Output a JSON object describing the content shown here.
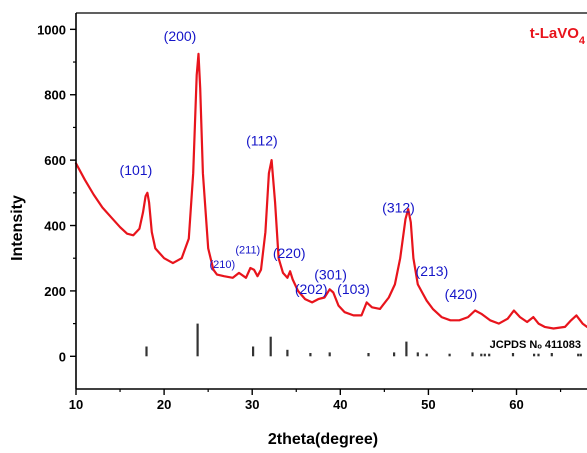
{
  "chart_data": {
    "type": "line",
    "xlabel": "2theta(degree)",
    "ylabel": "Intensity",
    "xlim": [
      10,
      68
    ],
    "ylim": [
      -100,
      1050
    ],
    "x_ticks": [
      10,
      20,
      30,
      40,
      50,
      60
    ],
    "y_ticks": [
      0,
      200,
      400,
      600,
      800,
      1000
    ],
    "grid": false,
    "colors": {
      "pattern": "#e8141c",
      "reference": "#333333",
      "peak_labels": "#1515c8",
      "axes": "#000000"
    },
    "sample_label": {
      "main": "t-LaVO",
      "subscript": "4"
    },
    "series": [
      {
        "name": "t-LaVO4",
        "color": "#e8141c",
        "x": [
          10,
          11,
          12,
          13,
          14,
          15,
          15.8,
          16.5,
          17.2,
          17.6,
          17.9,
          18.1,
          18.3,
          18.6,
          19,
          20,
          21,
          22,
          22.8,
          23.3,
          23.7,
          23.9,
          24.1,
          24.4,
          25,
          25.6,
          26,
          26.8,
          27.8,
          28.5,
          29.3,
          29.8,
          30.2,
          30.6,
          31.0,
          31.5,
          31.9,
          32.2,
          32.6,
          33.0,
          33.5,
          34.0,
          34.3,
          34.6,
          35.2,
          36.0,
          36.8,
          37.5,
          38.2,
          38.8,
          39.2,
          39.8,
          40.5,
          41.5,
          42.4,
          43.0,
          43.6,
          44.5,
          45.5,
          46.2,
          46.8,
          47.4,
          47.7,
          48.0,
          48.3,
          48.8,
          49.3,
          49.8,
          50.5,
          51.5,
          52.5,
          53.5,
          54.5,
          55.3,
          56.0,
          57.0,
          58.0,
          59.0,
          59.7,
          60.4,
          61.2,
          61.9,
          62.5,
          63.2,
          64.2,
          65.5,
          66.2,
          66.8,
          67.5,
          68.0
        ],
        "y": [
          590,
          540,
          495,
          455,
          425,
          395,
          375,
          370,
          390,
          440,
          490,
          500,
          470,
          380,
          330,
          300,
          285,
          300,
          360,
          560,
          860,
          925,
          820,
          560,
          330,
          265,
          250,
          245,
          240,
          255,
          240,
          270,
          265,
          245,
          265,
          380,
          560,
          600,
          470,
          300,
          255,
          240,
          260,
          235,
          200,
          175,
          165,
          175,
          180,
          205,
          195,
          155,
          135,
          125,
          125,
          165,
          150,
          145,
          180,
          220,
          300,
          420,
          450,
          410,
          300,
          220,
          195,
          170,
          145,
          120,
          110,
          110,
          120,
          140,
          130,
          110,
          100,
          115,
          140,
          120,
          105,
          120,
          100,
          90,
          85,
          90,
          110,
          125,
          100,
          90
        ]
      }
    ],
    "reference": {
      "label": "JCPDS Nₒ 411083",
      "color": "#333333",
      "lines": [
        {
          "x": 18.0,
          "y": 30
        },
        {
          "x": 23.8,
          "y": 100
        },
        {
          "x": 30.1,
          "y": 30
        },
        {
          "x": 32.1,
          "y": 60
        },
        {
          "x": 34.0,
          "y": 20
        },
        {
          "x": 36.6,
          "y": 10
        },
        {
          "x": 38.8,
          "y": 12
        },
        {
          "x": 43.2,
          "y": 10
        },
        {
          "x": 46.1,
          "y": 12
        },
        {
          "x": 47.5,
          "y": 45
        },
        {
          "x": 48.8,
          "y": 12
        },
        {
          "x": 49.8,
          "y": 8
        },
        {
          "x": 52.4,
          "y": 8
        },
        {
          "x": 55.0,
          "y": 12
        },
        {
          "x": 56.0,
          "y": 8
        },
        {
          "x": 56.4,
          "y": 8
        },
        {
          "x": 56.9,
          "y": 8
        },
        {
          "x": 59.6,
          "y": 10
        },
        {
          "x": 62.0,
          "y": 8
        },
        {
          "x": 62.5,
          "y": 8
        },
        {
          "x": 64.0,
          "y": 10
        },
        {
          "x": 67.0,
          "y": 8
        },
        {
          "x": 67.3,
          "y": 8
        }
      ]
    },
    "annotations": [
      {
        "text": "(101)",
        "x": 16.8,
        "y": 555,
        "size": "normal"
      },
      {
        "text": "(200)",
        "x": 21.8,
        "y": 965,
        "size": "normal"
      },
      {
        "text": "(210)",
        "x": 26.6,
        "y": 270,
        "size": "small"
      },
      {
        "text": "(211)",
        "x": 29.5,
        "y": 315,
        "size": "small"
      },
      {
        "text": "(112)",
        "x": 31.1,
        "y": 645,
        "size": "normal"
      },
      {
        "text": "(220)",
        "x": 34.2,
        "y": 300,
        "size": "normal"
      },
      {
        "text": "(202)",
        "x": 36.7,
        "y": 190,
        "size": "normal"
      },
      {
        "text": "(301)",
        "x": 38.9,
        "y": 235,
        "size": "normal"
      },
      {
        "text": "(103)",
        "x": 41.5,
        "y": 190,
        "size": "normal"
      },
      {
        "text": "(312)",
        "x": 46.6,
        "y": 440,
        "size": "normal"
      },
      {
        "text": "(213)",
        "x": 50.4,
        "y": 245,
        "size": "normal"
      },
      {
        "text": "(420)",
        "x": 53.7,
        "y": 175,
        "size": "normal"
      }
    ]
  }
}
